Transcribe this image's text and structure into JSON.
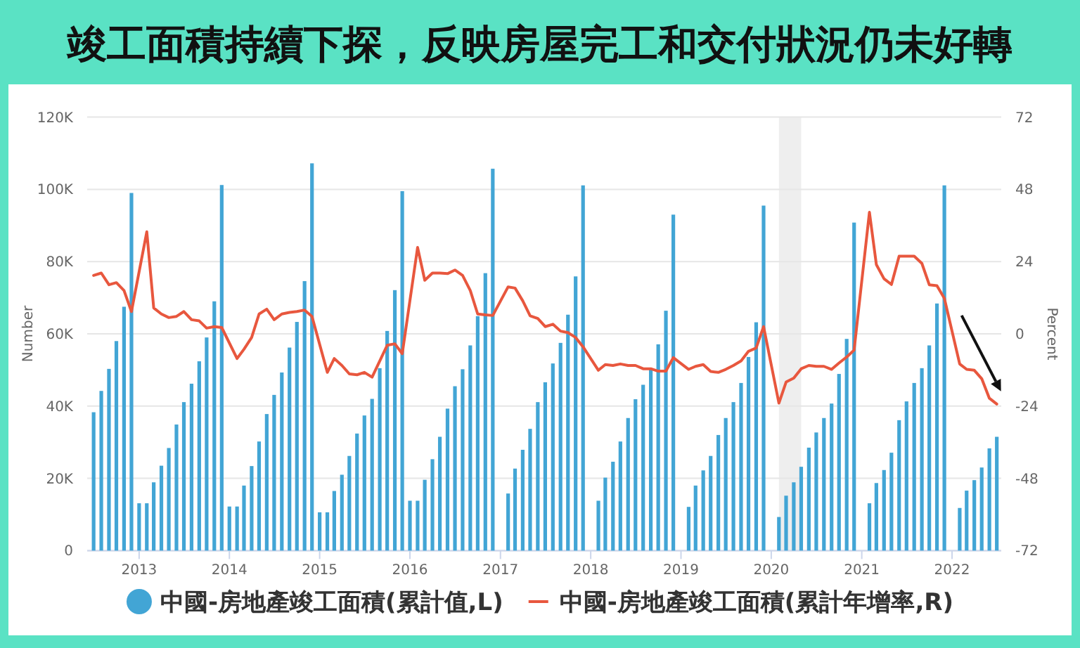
{
  "chart_data": {
    "type": "bar",
    "title": "竣工面積持續下探，反映房屋完工和交付狀況仍未好轉",
    "ylabel": "Number",
    "y2label": "Percent",
    "xlim": [
      "2012-06-05",
      "2022-07-19"
    ],
    "xticks": [
      "2013",
      "2014",
      "2015",
      "2016",
      "2017",
      "2018",
      "2019",
      "2020",
      "2021",
      "2022"
    ],
    "ylim": [
      0,
      120000
    ],
    "yticks": [
      0,
      {
        "value": 20000,
        "label": "20K"
      },
      {
        "value": 40000,
        "label": "40K"
      },
      {
        "value": 60000,
        "label": "60K"
      },
      {
        "value": 80000,
        "label": "80K"
      },
      {
        "value": 100000,
        "label": "100K"
      },
      {
        "value": 120000,
        "label": "120K"
      }
    ],
    "y2lim": [
      -72,
      72
    ],
    "y2ticks": [
      -72,
      -48,
      -24,
      0,
      24,
      48,
      72
    ],
    "grid": "y",
    "legend": "bottom",
    "bands": [
      {
        "axis": "x",
        "from": "2020-02",
        "to": "2020-05",
        "color": "#eeeeee"
      }
    ],
    "series": [
      {
        "name": "中國-房地產竣工面積(累計值,L)",
        "color": "#42a5d5",
        "x": [
          "2012-07",
          "2012-08",
          "2012-09",
          "2012-10",
          "2012-11",
          "2012-12",
          "2013-01",
          "2013-02",
          "2013-03",
          "2013-04",
          "2013-05",
          "2013-06",
          "2013-07",
          "2013-08",
          "2013-09",
          "2013-10",
          "2013-11",
          "2013-12",
          "2014-01",
          "2014-02",
          "2014-03",
          "2014-04",
          "2014-05",
          "2014-06",
          "2014-07",
          "2014-08",
          "2014-09",
          "2014-10",
          "2014-11",
          "2014-12",
          "2015-01",
          "2015-02",
          "2015-03",
          "2015-04",
          "2015-05",
          "2015-06",
          "2015-07",
          "2015-08",
          "2015-09",
          "2015-10",
          "2015-11",
          "2015-12",
          "2016-01",
          "2016-02",
          "2016-03",
          "2016-04",
          "2016-05",
          "2016-06",
          "2016-07",
          "2016-08",
          "2016-09",
          "2016-10",
          "2016-11",
          "2016-12",
          "2017-02",
          "2017-03",
          "2017-04",
          "2017-05",
          "2017-06",
          "2017-07",
          "2017-08",
          "2017-09",
          "2017-10",
          "2017-11",
          "2017-12",
          "2018-02",
          "2018-03",
          "2018-04",
          "2018-05",
          "2018-06",
          "2018-07",
          "2018-08",
          "2018-09",
          "2018-10",
          "2018-11",
          "2018-12",
          "2019-02",
          "2019-03",
          "2019-04",
          "2019-05",
          "2019-06",
          "2019-07",
          "2019-08",
          "2019-09",
          "2019-10",
          "2019-11",
          "2019-12",
          "2020-02",
          "2020-03",
          "2020-04",
          "2020-05",
          "2020-06",
          "2020-07",
          "2020-08",
          "2020-09",
          "2020-10",
          "2020-11",
          "2020-12",
          "2021-02",
          "2021-03",
          "2021-04",
          "2021-05",
          "2021-06",
          "2021-07",
          "2021-08",
          "2021-09",
          "2021-10",
          "2021-11",
          "2021-12",
          "2022-02",
          "2022-03",
          "2022-04",
          "2022-05",
          "2022-06",
          "2022-07"
        ],
        "values": [
          38300,
          44200,
          50300,
          58000,
          67500,
          99000,
          13100,
          13100,
          18900,
          23500,
          28400,
          34900,
          41100,
          46200,
          52400,
          59000,
          69000,
          101200,
          12200,
          12200,
          18000,
          23400,
          30200,
          37800,
          43100,
          49300,
          56200,
          63300,
          74600,
          107200,
          10600,
          10600,
          16500,
          21000,
          26200,
          32400,
          37400,
          42000,
          50500,
          60800,
          72100,
          99500,
          13800,
          13800,
          19600,
          25300,
          31500,
          39300,
          45500,
          50200,
          56800,
          64900,
          76800,
          105700,
          15800,
          22700,
          27900,
          33700,
          41100,
          46600,
          51800,
          57500,
          65300,
          75900,
          101100,
          13800,
          20200,
          24600,
          30200,
          36700,
          41900,
          45900,
          50300,
          57100,
          66400,
          93000,
          12100,
          18000,
          22200,
          26200,
          32000,
          36700,
          41100,
          46400,
          53600,
          63200,
          95500,
          9300,
          15200,
          18900,
          23200,
          28500,
          32700,
          36700,
          40700,
          48900,
          58600,
          90800,
          13100,
          18700,
          22300,
          27100,
          36100,
          41300,
          46400,
          50500,
          56800,
          68400,
          101100,
          11800,
          16600,
          19500,
          23000,
          28300,
          31500
        ]
      },
      {
        "type": "line",
        "name": "中國-房地產竣工面積(累計年增率,R)",
        "color": "#e8573e",
        "axis": "y2",
        "x": [
          "2012-07",
          "2012-08",
          "2012-09",
          "2012-10",
          "2012-11",
          "2012-12",
          "2013-02",
          "2013-03",
          "2013-04",
          "2013-05",
          "2013-06",
          "2013-07",
          "2013-08",
          "2013-09",
          "2013-10",
          "2013-11",
          "2013-12",
          "2014-02",
          "2014-03",
          "2014-04",
          "2014-05",
          "2014-06",
          "2014-07",
          "2014-08",
          "2014-09",
          "2014-10",
          "2014-11",
          "2014-12",
          "2015-02",
          "2015-03",
          "2015-04",
          "2015-05",
          "2015-06",
          "2015-07",
          "2015-08",
          "2015-09",
          "2015-10",
          "2015-11",
          "2015-12",
          "2016-02",
          "2016-03",
          "2016-04",
          "2016-05",
          "2016-06",
          "2016-07",
          "2016-08",
          "2016-09",
          "2016-10",
          "2016-11",
          "2016-12",
          "2017-02",
          "2017-03",
          "2017-04",
          "2017-05",
          "2017-06",
          "2017-07",
          "2017-08",
          "2017-09",
          "2017-10",
          "2017-11",
          "2017-12",
          "2018-02",
          "2018-03",
          "2018-04",
          "2018-05",
          "2018-06",
          "2018-07",
          "2018-08",
          "2018-09",
          "2018-10",
          "2018-11",
          "2018-12",
          "2019-02",
          "2019-03",
          "2019-04",
          "2019-05",
          "2019-06",
          "2019-07",
          "2019-08",
          "2019-09",
          "2019-10",
          "2019-11",
          "2019-12",
          "2020-02",
          "2020-03",
          "2020-04",
          "2020-05",
          "2020-06",
          "2020-07",
          "2020-08",
          "2020-09",
          "2020-10",
          "2020-11",
          "2020-12",
          "2021-02",
          "2021-03",
          "2021-04",
          "2021-05",
          "2021-06",
          "2021-07",
          "2021-08",
          "2021-09",
          "2021-10",
          "2021-11",
          "2021-12",
          "2022-02",
          "2022-03",
          "2022-04",
          "2022-05",
          "2022-06",
          "2022-07"
        ],
        "values": [
          19.4,
          20.2,
          16.3,
          17.0,
          14.4,
          7.4,
          33.9,
          8.6,
          6.6,
          5.4,
          5.8,
          7.4,
          4.7,
          4.3,
          1.9,
          2.4,
          2.1,
          -8.2,
          -5.1,
          -1.2,
          6.6,
          8.2,
          4.7,
          6.6,
          7.1,
          7.4,
          7.9,
          5.8,
          -12.8,
          -8.2,
          -10.5,
          -13.3,
          -13.6,
          -12.8,
          -14.4,
          -9.0,
          -3.8,
          -3.3,
          -6.6,
          28.7,
          17.8,
          20.2,
          20.2,
          20.0,
          21.2,
          19.4,
          14.4,
          6.6,
          6.3,
          6.1,
          15.6,
          15.2,
          11.0,
          6.0,
          5.1,
          2.4,
          3.2,
          0.9,
          0.4,
          -1.2,
          -4.3,
          -12.1,
          -10.2,
          -10.5,
          -10.0,
          -10.5,
          -10.5,
          -11.6,
          -11.6,
          -12.4,
          -12.4,
          -7.9,
          -11.8,
          -10.8,
          -10.2,
          -12.5,
          -12.8,
          -11.8,
          -10.5,
          -9.0,
          -5.8,
          -4.7,
          2.4,
          -23.0,
          -16.0,
          -14.7,
          -11.6,
          -10.5,
          -10.8,
          -10.8,
          -11.8,
          -9.7,
          -7.7,
          -5.4,
          40.4,
          23.0,
          18.3,
          16.4,
          25.8,
          25.8,
          25.8,
          23.4,
          16.3,
          16.0,
          11.8,
          -10.0,
          -11.8,
          -12.1,
          -14.9,
          -21.4,
          -23.3
        ]
      }
    ]
  }
}
